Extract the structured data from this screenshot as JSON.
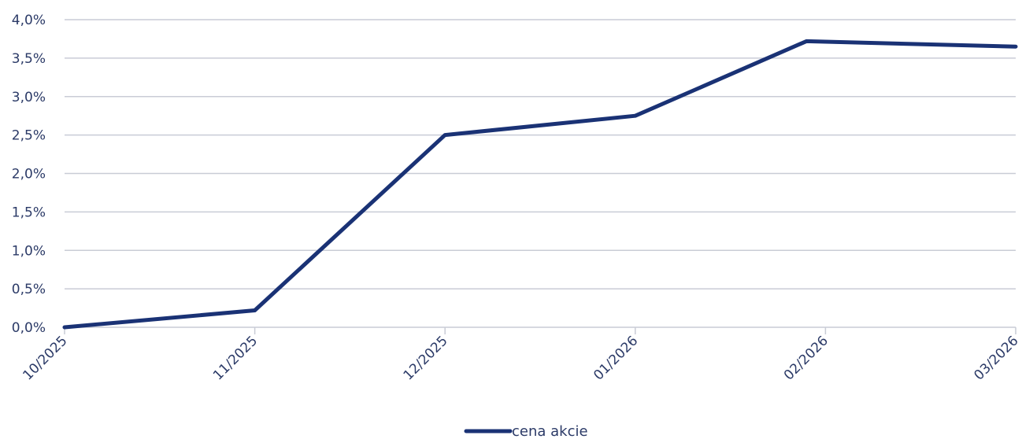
{
  "chart_data": {
    "type": "line",
    "title": "",
    "xlabel": "",
    "ylabel": "",
    "categories": [
      "10/2025",
      "11/2025",
      "12/2025",
      "01/2026",
      "02/2026",
      "03/2026"
    ],
    "x_values": [
      0,
      1,
      2,
      3,
      4,
      5
    ],
    "series": [
      {
        "name": "cena akcie",
        "color": "#1a3275",
        "points": [
          {
            "x": 0.0,
            "y": 0.0
          },
          {
            "x": 1.0,
            "y": 0.22
          },
          {
            "x": 2.0,
            "y": 2.5
          },
          {
            "x": 3.0,
            "y": 2.75
          },
          {
            "x": 3.9,
            "y": 3.72
          },
          {
            "x": 5.0,
            "y": 3.65
          }
        ]
      }
    ],
    "ylim": [
      0,
      4
    ],
    "yticks": [
      "0,0%",
      "0,5%",
      "1,0%",
      "1,5%",
      "2,0%",
      "2,5%",
      "3,0%",
      "3,5%",
      "4,0%"
    ],
    "ytick_values": [
      0,
      0.5,
      1.0,
      1.5,
      2.0,
      2.5,
      3.0,
      3.5,
      4.0
    ],
    "grid": true,
    "legend": "bottom-center",
    "colors": {
      "line": "#1a3275",
      "grid": "#c9ccd6",
      "text": "#2b3a67"
    }
  }
}
